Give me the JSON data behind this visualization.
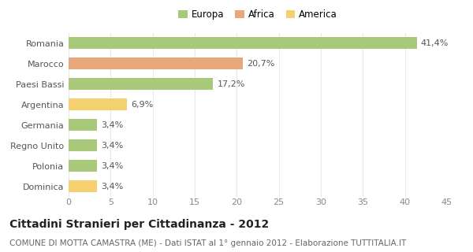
{
  "categories": [
    "Romania",
    "Marocco",
    "Paesi Bassi",
    "Argentina",
    "Germania",
    "Regno Unito",
    "Polonia",
    "Dominica"
  ],
  "values": [
    41.4,
    20.7,
    17.2,
    6.9,
    3.4,
    3.4,
    3.4,
    3.4
  ],
  "labels": [
    "41,4%",
    "20,7%",
    "17,2%",
    "6,9%",
    "3,4%",
    "3,4%",
    "3,4%",
    "3,4%"
  ],
  "colors": [
    "#a8c87a",
    "#e8a87c",
    "#a8c87a",
    "#f5d06e",
    "#a8c87a",
    "#a8c87a",
    "#a8c87a",
    "#f5d06e"
  ],
  "legend_labels": [
    "Europa",
    "Africa",
    "America"
  ],
  "legend_colors": [
    "#a8c87a",
    "#e8a87c",
    "#f5d06e"
  ],
  "title": "Cittadini Stranieri per Cittadinanza - 2012",
  "subtitle": "COMUNE DI MOTTA CAMASTRA (ME) - Dati ISTAT al 1° gennaio 2012 - Elaborazione TUTTITALIA.IT",
  "xlim": [
    0,
    45
  ],
  "xticks": [
    0,
    5,
    10,
    15,
    20,
    25,
    30,
    35,
    40,
    45
  ],
  "bg_color": "#ffffff",
  "grid_color": "#e8e8e8",
  "bar_height": 0.6,
  "title_fontsize": 10,
  "subtitle_fontsize": 7.5,
  "tick_fontsize": 8,
  "label_fontsize": 8
}
